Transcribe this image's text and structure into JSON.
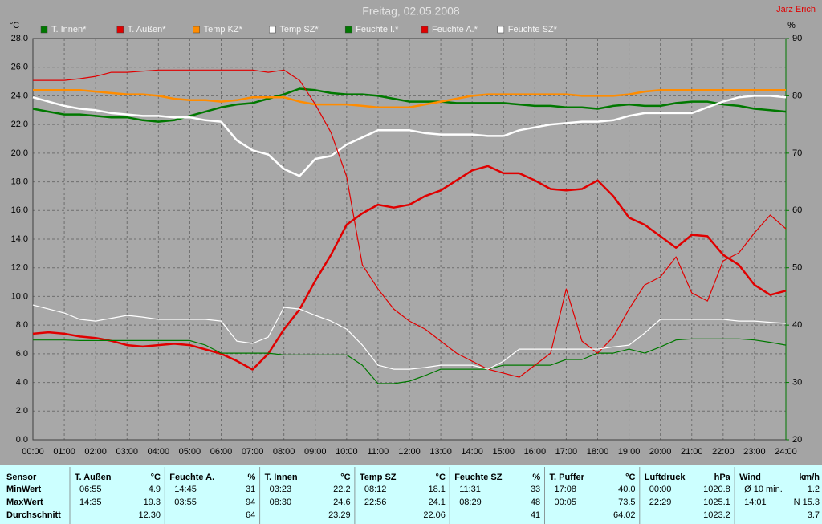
{
  "chart_data": {
    "type": "line",
    "title": "Freitag, 02.05.2008",
    "annotation": "Jarz Erich",
    "ylabel": "°C",
    "y2label": "%",
    "x": [
      0,
      0.5,
      1,
      1.5,
      2,
      2.5,
      3,
      3.5,
      4,
      4.5,
      5,
      5.5,
      6,
      6.5,
      7,
      7.5,
      8,
      8.5,
      9,
      9.5,
      10,
      10.5,
      11,
      11.5,
      12,
      12.5,
      13,
      13.5,
      14,
      14.5,
      15,
      15.5,
      16,
      16.5,
      17,
      17.5,
      18,
      18.5,
      19,
      19.5,
      20,
      20.5,
      21,
      21.5,
      22,
      22.5,
      23,
      23.5,
      24
    ],
    "xlim": [
      0,
      24
    ],
    "xticks": [
      {
        "value": 0,
        "label": "00:00"
      },
      {
        "value": 1,
        "label": "01:00"
      },
      {
        "value": 2,
        "label": "02:00"
      },
      {
        "value": 3,
        "label": "03:00"
      },
      {
        "value": 4,
        "label": "04:00"
      },
      {
        "value": 5,
        "label": "05:00"
      },
      {
        "value": 6,
        "label": "06:00"
      },
      {
        "value": 7,
        "label": "07:00"
      },
      {
        "value": 8,
        "label": "08:00"
      },
      {
        "value": 9,
        "label": "09:00"
      },
      {
        "value": 10,
        "label": "10:00"
      },
      {
        "value": 11,
        "label": "11:00"
      },
      {
        "value": 12,
        "label": "12:00"
      },
      {
        "value": 13,
        "label": "13:00"
      },
      {
        "value": 14,
        "label": "14:00"
      },
      {
        "value": 15,
        "label": "15:00"
      },
      {
        "value": 16,
        "label": "16:00"
      },
      {
        "value": 17,
        "label": "17:00"
      },
      {
        "value": 18,
        "label": "18:00"
      },
      {
        "value": 19,
        "label": "19:00"
      },
      {
        "value": 20,
        "label": "20:00"
      },
      {
        "value": 21,
        "label": "21:00"
      },
      {
        "value": 22,
        "label": "22:00"
      },
      {
        "value": 23,
        "label": "23:00"
      },
      {
        "value": 24,
        "label": "24:00"
      }
    ],
    "ylim": [
      0,
      28
    ],
    "yticks": [
      {
        "value": 0,
        "label": "0.0"
      },
      {
        "value": 2,
        "label": "2.0"
      },
      {
        "value": 4,
        "label": "4.0"
      },
      {
        "value": 6,
        "label": "6.0"
      },
      {
        "value": 8,
        "label": "8.0"
      },
      {
        "value": 10,
        "label": "10.0"
      },
      {
        "value": 12,
        "label": "12.0"
      },
      {
        "value": 14,
        "label": "14.0"
      },
      {
        "value": 16,
        "label": "16.0"
      },
      {
        "value": 18,
        "label": "18.0"
      },
      {
        "value": 20,
        "label": "20.0"
      },
      {
        "value": 22,
        "label": "22.0"
      },
      {
        "value": 24,
        "label": "24.0"
      },
      {
        "value": 26,
        "label": "26.0"
      },
      {
        "value": 28,
        "label": "28.0"
      }
    ],
    "y2lim": [
      20,
      90
    ],
    "y2ticks": [
      20,
      30,
      40,
      50,
      60,
      70,
      80,
      90
    ],
    "grid": true,
    "series": [
      {
        "name": "T. Innen*",
        "color": "#007800",
        "values": [
          23.1,
          22.9,
          22.7,
          22.7,
          22.6,
          22.5,
          22.5,
          22.3,
          22.2,
          22.3,
          22.6,
          22.9,
          23.2,
          23.4,
          23.5,
          23.8,
          24.1,
          24.5,
          24.4,
          24.2,
          24.1,
          24.1,
          24.0,
          23.8,
          23.6,
          23.6,
          23.6,
          23.5,
          23.5,
          23.5,
          23.5,
          23.4,
          23.3,
          23.3,
          23.2,
          23.2,
          23.1,
          23.3,
          23.4,
          23.3,
          23.3,
          23.5,
          23.6,
          23.6,
          23.4,
          23.3,
          23.1,
          23.0,
          22.9
        ]
      },
      {
        "name": "T. Außen*",
        "color": "#e00000",
        "values": [
          7.4,
          7.5,
          7.4,
          7.2,
          7.1,
          6.9,
          6.6,
          6.5,
          6.6,
          6.7,
          6.6,
          6.3,
          6.0,
          5.5,
          4.9,
          6.0,
          7.7,
          9.1,
          11.1,
          12.9,
          15.0,
          15.8,
          16.4,
          16.2,
          16.4,
          17.0,
          17.4,
          18.1,
          18.8,
          19.1,
          18.6,
          18.6,
          18.1,
          17.5,
          17.4,
          17.5,
          18.1,
          17.0,
          15.5,
          15.0,
          14.2,
          13.4,
          14.3,
          14.2,
          12.9,
          12.2,
          10.8,
          10.1,
          10.4
        ]
      },
      {
        "name": "Temp KZ*",
        "color": "#ff8c00",
        "values": [
          24.4,
          24.4,
          24.4,
          24.4,
          24.3,
          24.2,
          24.1,
          24.1,
          24.0,
          23.8,
          23.7,
          23.7,
          23.6,
          23.7,
          23.9,
          23.9,
          23.9,
          23.6,
          23.4,
          23.4,
          23.4,
          23.3,
          23.2,
          23.2,
          23.2,
          23.4,
          23.6,
          23.8,
          24.0,
          24.1,
          24.1,
          24.1,
          24.1,
          24.1,
          24.1,
          24.0,
          24.0,
          24.0,
          24.1,
          24.3,
          24.4,
          24.4,
          24.4,
          24.4,
          24.4,
          24.4,
          24.4,
          24.4,
          24.4
        ]
      },
      {
        "name": "Temp SZ*",
        "color": "#ffffff",
        "values": [
          23.9,
          23.6,
          23.3,
          23.1,
          23.0,
          22.8,
          22.7,
          22.6,
          22.6,
          22.5,
          22.5,
          22.3,
          22.2,
          20.9,
          20.2,
          19.9,
          18.9,
          18.4,
          19.6,
          19.8,
          20.6,
          21.1,
          21.6,
          21.6,
          21.6,
          21.4,
          21.3,
          21.3,
          21.3,
          21.2,
          21.2,
          21.6,
          21.8,
          22.0,
          22.1,
          22.2,
          22.2,
          22.3,
          22.6,
          22.8,
          22.8,
          22.8,
          22.8,
          23.2,
          23.6,
          23.9,
          24.0,
          24.0,
          23.9
        ]
      },
      {
        "name": "Feuchte I.*",
        "color": "#007800",
        "axis": "y2",
        "values": [
          37.4,
          37.4,
          37.4,
          37.3,
          37.3,
          37.3,
          37.3,
          37.3,
          37.3,
          37.3,
          37.3,
          36.5,
          35.1,
          35.1,
          35.1,
          35.1,
          34.8,
          34.8,
          34.8,
          34.8,
          34.8,
          33.0,
          29.8,
          29.8,
          30.2,
          31.2,
          32.3,
          32.3,
          32.3,
          32.3,
          33.0,
          33.0,
          33.0,
          33.0,
          34.0,
          34.0,
          35.1,
          35.1,
          35.8,
          35.1,
          36.2,
          37.4,
          37.6,
          37.6,
          37.6,
          37.6,
          37.4,
          37.0,
          36.5
        ]
      },
      {
        "name": "Feuchte A.*",
        "color": "#e00000",
        "axis": "y2",
        "values": [
          82.7,
          82.7,
          82.7,
          83.0,
          83.4,
          84.1,
          84.1,
          84.3,
          84.5,
          84.5,
          84.5,
          84.5,
          84.5,
          84.5,
          84.5,
          84.1,
          84.5,
          82.7,
          78.5,
          73.6,
          65.9,
          50.5,
          46.3,
          42.8,
          40.7,
          39.3,
          37.2,
          35.1,
          33.7,
          32.3,
          31.6,
          30.9,
          33.0,
          35.1,
          46.3,
          37.2,
          35.1,
          37.9,
          42.8,
          47.0,
          48.4,
          51.9,
          45.6,
          44.2,
          51.2,
          52.6,
          56.1,
          59.2,
          56.8
        ]
      },
      {
        "name": "Feuchte SZ*",
        "color": "#ffffff",
        "axis": "y2",
        "values": [
          43.5,
          42.8,
          42.1,
          41.0,
          40.7,
          41.2,
          41.7,
          41.4,
          41.0,
          41.0,
          41.0,
          41.0,
          40.7,
          37.2,
          36.8,
          37.9,
          43.1,
          42.8,
          41.7,
          40.7,
          39.3,
          36.5,
          33.0,
          32.3,
          32.3,
          32.6,
          33.0,
          33.0,
          33.0,
          32.3,
          33.7,
          35.8,
          35.8,
          35.8,
          35.8,
          35.8,
          35.8,
          36.2,
          36.5,
          38.6,
          41.0,
          41.0,
          41.0,
          41.0,
          41.0,
          40.7,
          40.7,
          40.5,
          40.3
        ]
      }
    ]
  },
  "table": {
    "corner": "Sensor",
    "headers": [
      {
        "name": "T. Außen",
        "unit": "°C"
      },
      {
        "name": "Feuchte A.",
        "unit": "%"
      },
      {
        "name": "T. Innen",
        "unit": "°C"
      },
      {
        "name": "Temp SZ",
        "unit": "°C"
      },
      {
        "name": "Feuchte SZ",
        "unit": "%"
      },
      {
        "name": "T. Puffer",
        "unit": "°C"
      },
      {
        "name": "Luftdruck",
        "unit": "hPa"
      },
      {
        "name": "Wind",
        "unit": "km/h"
      }
    ],
    "rows": [
      {
        "label": "MinWert",
        "cells": [
          [
            "06:55",
            "4.9"
          ],
          [
            "14:45",
            "31"
          ],
          [
            "03:23",
            "22.2"
          ],
          [
            "08:12",
            "18.1"
          ],
          [
            "11:31",
            "33"
          ],
          [
            "17:08",
            "40.0"
          ],
          [
            "00:00",
            "1020.8"
          ],
          [
            "Ø 10 min.",
            "1.2"
          ]
        ]
      },
      {
        "label": "MaxWert",
        "cells": [
          [
            "14:35",
            "19.3"
          ],
          [
            "03:55",
            "94"
          ],
          [
            "08:30",
            "24.6"
          ],
          [
            "22:56",
            "24.1"
          ],
          [
            "08:29",
            "48"
          ],
          [
            "00:05",
            "73.5"
          ],
          [
            "22:29",
            "1025.1"
          ],
          [
            "14:01",
            "N 15.3"
          ]
        ]
      },
      {
        "label": "Durchschnitt",
        "cells": [
          [
            "12.30"
          ],
          [
            "64"
          ],
          [
            "23.29"
          ],
          [
            "22.06"
          ],
          [
            "41"
          ],
          [
            "64.02"
          ],
          [
            "1023.2"
          ],
          [
            "3.7"
          ]
        ]
      }
    ]
  }
}
